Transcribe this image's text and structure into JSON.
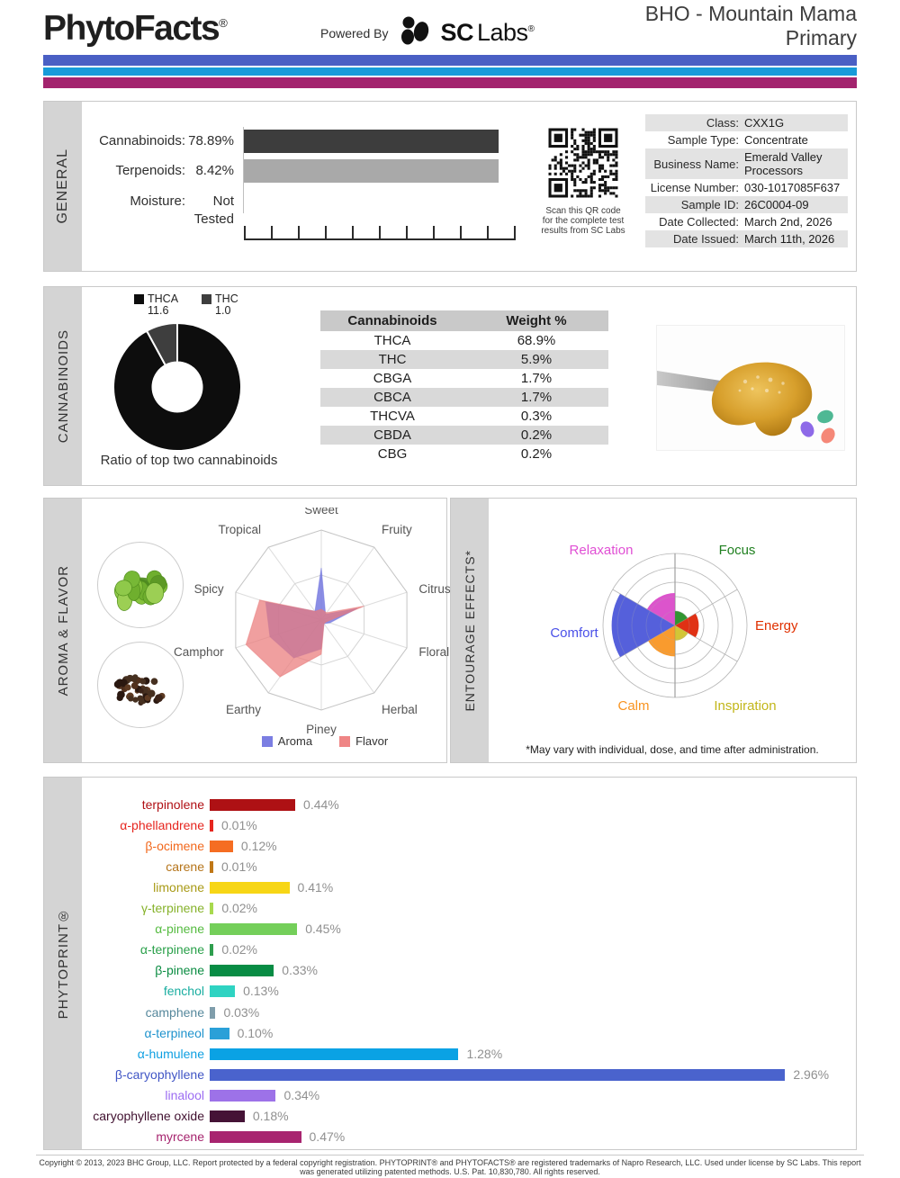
{
  "header": {
    "logo": "PhytoFacts",
    "logo_reg": "®",
    "powered_by": "Powered By",
    "sclabs_bold": "SC",
    "sclabs_rest": "Labs",
    "sclabs_reg": "®",
    "title_line1": "BHO - Mountain Mama",
    "title_line2": "Primary"
  },
  "brand_colors": {
    "blue": "#4a5fc4",
    "cyan": "#179bd9",
    "magenta": "#a3246e"
  },
  "sections": {
    "general": "GENERAL",
    "cannabinoids": "CANNABINOIDS",
    "aroma": "AROMA & FLAVOR",
    "entourage": "ENTOURAGE EFFECTS*",
    "phytoprint": "PHYTOPRINT®"
  },
  "general": {
    "rows": [
      {
        "label": "Cannabinoids:",
        "value": "78.89%",
        "bar_color": "#3d3d3d"
      },
      {
        "label": "Terpenoids:",
        "value": "8.42%",
        "bar_color": "#a9a9a9"
      },
      {
        "label": "Moisture:",
        "value": "Not Tested",
        "bar_color": null
      }
    ],
    "ruler_ticks": 11,
    "qr_caption": "Scan this QR code\nfor the complete test\nresults from SC Labs",
    "info": [
      {
        "label": "Class:",
        "value": "CXX1G"
      },
      {
        "label": "Sample Type:",
        "value": "Concentrate"
      },
      {
        "label": "Business Name:",
        "value": "Emerald Valley Processors"
      },
      {
        "label": "License Number:",
        "value": "030-1017085F637"
      },
      {
        "label": "Sample ID:",
        "value": "26C0004-09"
      },
      {
        "label": "Date Collected:",
        "value": "March 2nd, 2026"
      },
      {
        "label": "Date Issued:",
        "value": "March 11th, 2026"
      }
    ]
  },
  "entourage": {
    "footnote": "*May vary with individual, dose, and time after administration."
  },
  "footer": {
    "line1": "Copyright © 2013, 2023 BHC Group, LLC. Report protected by a federal copyright registration. PHYTOPRINT® and PHYTOFACTS® are registered trademarks of Napro Research, LLC. Used under license by SC Labs. This report",
    "line2": "was generated utilizing patented methods. U.S. Pat. 10,830,780. All rights reserved."
  },
  "chart_data": [
    {
      "type": "pie",
      "donut": true,
      "title": "Ratio of top two cannabinoids",
      "labels": [
        "THCA",
        "THC"
      ],
      "values": [
        11.6,
        1.0
      ],
      "display_values": [
        "11.6",
        "1.0"
      ],
      "colors": [
        "#0d0d0d",
        "#3e3e3e"
      ]
    },
    {
      "type": "table",
      "columns": [
        "Cannabinoids",
        "Weight %"
      ],
      "rows": [
        [
          "THCA",
          "68.9%"
        ],
        [
          "THC",
          "5.9%"
        ],
        [
          "CBGA",
          "1.7%"
        ],
        [
          "CBCA",
          "1.7%"
        ],
        [
          "THCVA",
          "0.3%"
        ],
        [
          "CBDA",
          "0.2%"
        ],
        [
          "CBG",
          "0.2%"
        ]
      ]
    },
    {
      "type": "radar",
      "categories": [
        "Sweet",
        "Fruity",
        "Citrusy",
        "Floral",
        "Herbal",
        "Piney",
        "Earthy",
        "Camphor",
        "Spicy",
        "Tropical"
      ],
      "range": [
        0,
        1
      ],
      "grid_rings": 2,
      "series": [
        {
          "name": "Aroma",
          "color": "#6e72de",
          "swatch": "#7b7ee2",
          "values": [
            0.58,
            0.08,
            0.42,
            0.1,
            0.05,
            0.32,
            0.52,
            0.6,
            0.65,
            0.12
          ]
        },
        {
          "name": "Flavor",
          "color": "#ea7a7a",
          "swatch": "#ef8585",
          "values": [
            0.12,
            0.1,
            0.5,
            0.06,
            0.05,
            0.38,
            0.78,
            0.88,
            0.72,
            0.12
          ]
        }
      ]
    },
    {
      "type": "polar",
      "title": "Entourage Effects",
      "categories": [
        "Energy",
        "Focus",
        "Relaxation",
        "Comfort",
        "Calm",
        "Inspiration"
      ],
      "values": [
        0.33,
        0.2,
        0.45,
        0.88,
        0.43,
        0.21
      ],
      "sector_center_deg": [
        0,
        60,
        120,
        180,
        240,
        300
      ],
      "sector_width_deg": 60,
      "rings": 5,
      "wedge_colors": [
        "#dd2000",
        "#1f8c1f",
        "#d945c8",
        "#4653d8",
        "#f8921c",
        "#cfc125"
      ],
      "label_colors": [
        "#e03000",
        "#208020",
        "#e04fd4",
        "#4a50e8",
        "#f8931f",
        "#c2b619"
      ]
    },
    {
      "type": "bar",
      "orientation": "horizontal",
      "unit": "%",
      "categories": [
        "terpinolene",
        "α-phellandrene",
        "β-ocimene",
        "carene",
        "limonene",
        "γ-terpinene",
        "α-pinene",
        "α-terpinene",
        "β-pinene",
        "fenchol",
        "camphene",
        "α-terpineol",
        "α-humulene",
        "β-caryophyllene",
        "linalool",
        "caryophyllene oxide",
        "myrcene"
      ],
      "values": [
        0.44,
        0.01,
        0.12,
        0.01,
        0.41,
        0.02,
        0.45,
        0.02,
        0.33,
        0.13,
        0.03,
        0.1,
        1.28,
        2.96,
        0.34,
        0.18,
        0.47
      ],
      "display_values": [
        "0.44%",
        "0.01%",
        "0.12%",
        "0.01%",
        "0.41%",
        "0.02%",
        "0.45%",
        "0.02%",
        "0.33%",
        "0.13%",
        "0.03%",
        "0.10%",
        "1.28%",
        "2.96%",
        "0.34%",
        "0.18%",
        "0.47%"
      ],
      "bar_colors": [
        "#ae1114",
        "#e6261f",
        "#f56d22",
        "#c07817",
        "#f7d616",
        "#a8d94e",
        "#74cf5a",
        "#2f9e4e",
        "#088c44",
        "#2fd3c2",
        "#7f9dab",
        "#2aa0d8",
        "#0aa2e4",
        "#4a63cd",
        "#9d72e8",
        "#451336",
        "#a8246f"
      ],
      "label_colors": [
        "#b01015",
        "#e6261f",
        "#f2681c",
        "#b5741a",
        "#a89a16",
        "#86b22b",
        "#55bb40",
        "#2aa04a",
        "#0b8c42",
        "#19ada0",
        "#56889c",
        "#1f93cd",
        "#0d9fe2",
        "#4055c5",
        "#9c6cf2",
        "#40102f",
        "#a6246e"
      ]
    }
  ]
}
